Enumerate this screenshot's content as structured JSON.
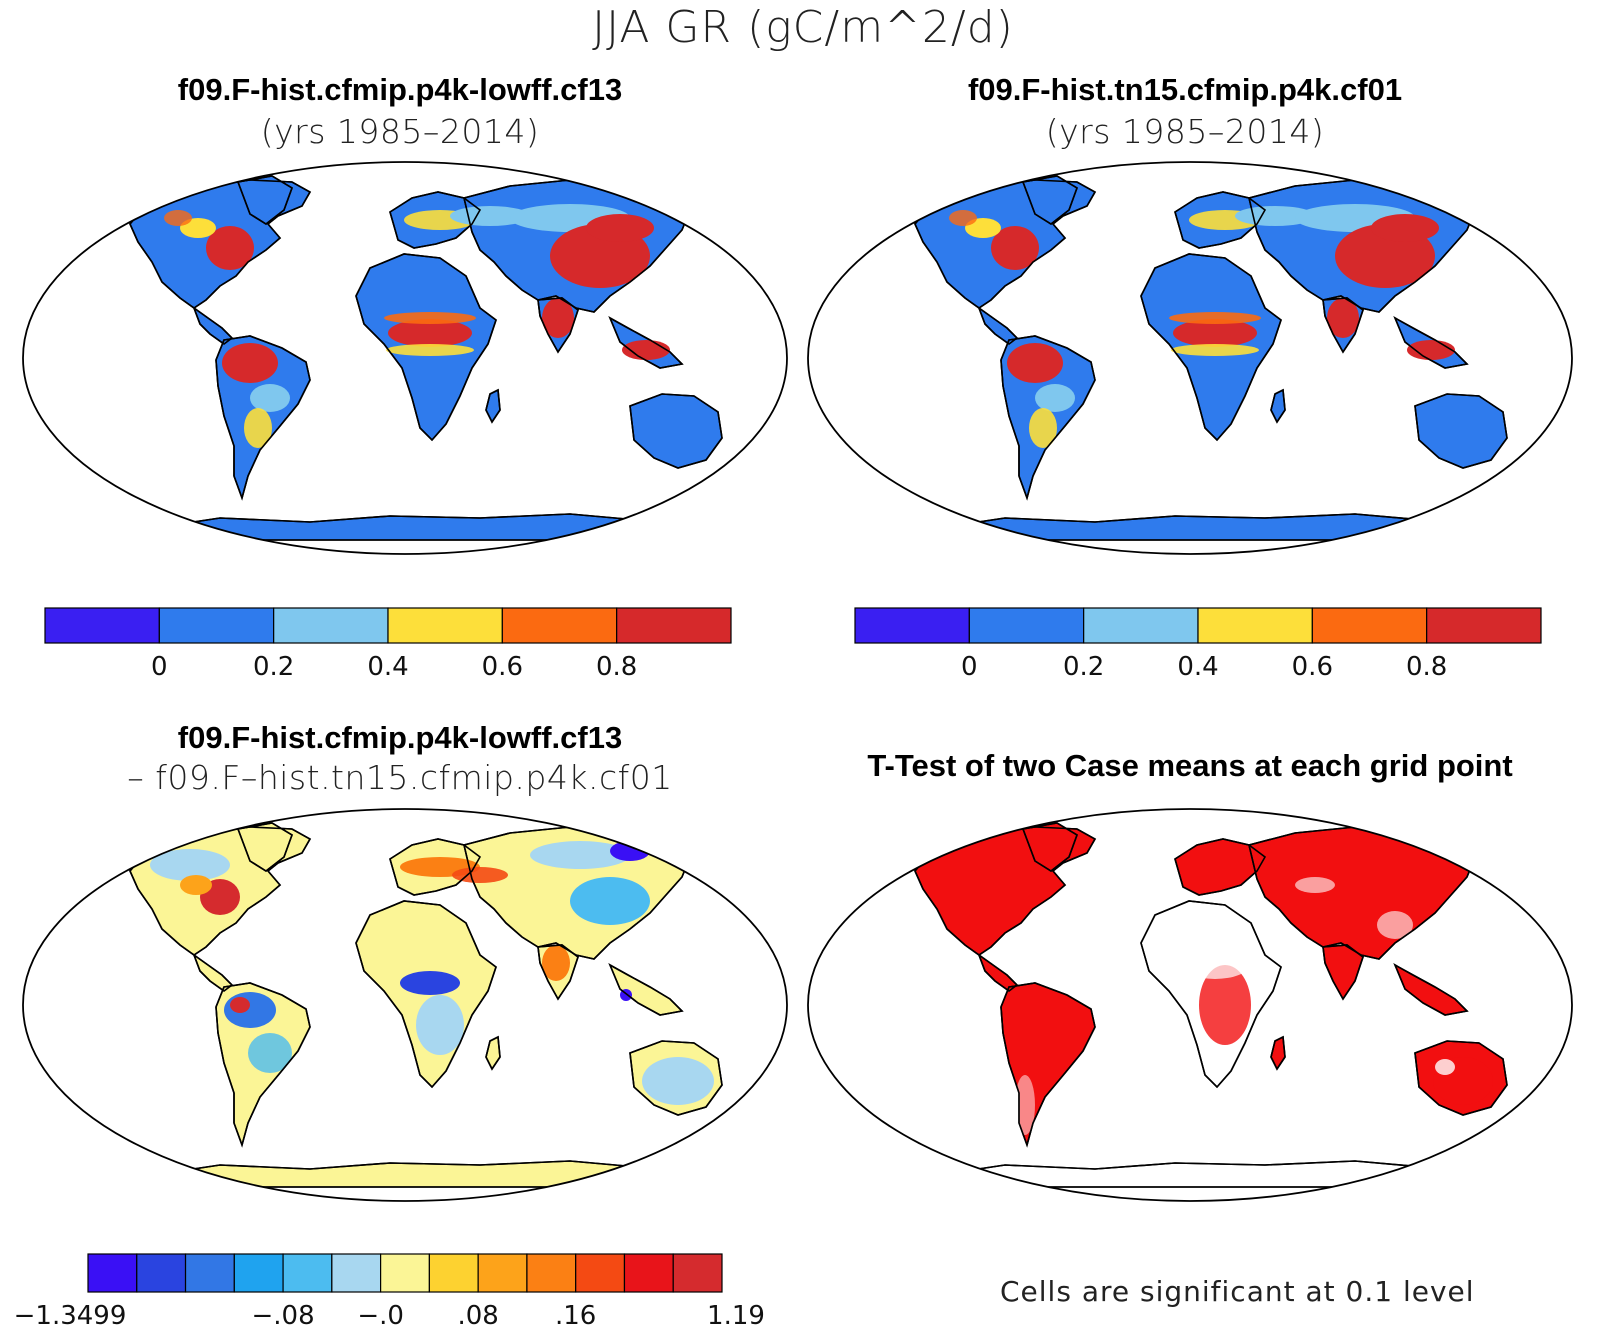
{
  "title": "JJA GR (gC/m^2/d)",
  "panels": [
    {
      "id": "case1",
      "title_line1": "f09.F-hist.cfmip.p4k-lowff.cf13",
      "title_line2": "(yrs 1985–2014)"
    },
    {
      "id": "case2",
      "title_line1": "f09.F-hist.tn15.cfmip.p4k.cf01",
      "title_line2": "(yrs 1985–2014)"
    },
    {
      "id": "diff",
      "title_line1": "f09.F-hist.cfmip.p4k-lowff.cf13",
      "title_line2": "– f09.F–hist.tn15.cfmip.p4k.cf01"
    },
    {
      "id": "ttest",
      "title_line1": "T-Test of two Case means at each grid point",
      "title_line2": ""
    }
  ],
  "colorbar_main": {
    "colors": [
      "#3a1ff2",
      "#2f7bed",
      "#7fc7ee",
      "#fddf3a",
      "#fb6a11",
      "#d6292b"
    ],
    "labels": [
      "0",
      "0.2",
      "0.4",
      "0.6",
      "0.8"
    ]
  },
  "colorbar_diff": {
    "colors": [
      "#3a10f5",
      "#2a44e0",
      "#3277e5",
      "#1fa3ef",
      "#4cbcf0",
      "#a8d7f0",
      "#fbf596",
      "#fdd230",
      "#fda31a",
      "#fb8014",
      "#f44a13",
      "#e8141a",
      "#d52b2e"
    ],
    "labels": [
      "−1.3499",
      "−.08",
      "−.0",
      ".08",
      ".16",
      "1.19"
    ]
  },
  "ttest_note": "Cells are significant at 0.1 level",
  "colors": {
    "ocean": "#ffffff",
    "land_low": "#2f7bed",
    "land_mid": "#7fc7ee",
    "land_yellow": "#fddf3a",
    "land_orange": "#fb6a11",
    "land_red": "#d6292b",
    "diff_neutral": "#fbf596",
    "ttest_sig": "#f20f10"
  }
}
